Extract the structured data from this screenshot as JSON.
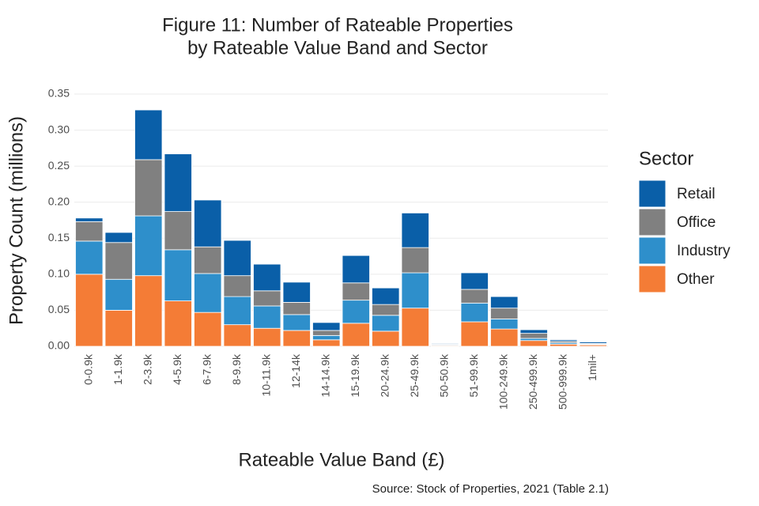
{
  "chart_data": {
    "type": "stacked-bar",
    "title": [
      "Figure 11: Number of Rateable Properties",
      "by Rateable Value Band and Sector"
    ],
    "x_label": "Rateable Value Band (£)",
    "y_label": "Property Count (millions)",
    "caption": "Source: Stock of Properties, 2021 (Table 2.1)",
    "legend_title": "Sector",
    "legend_position": "right",
    "grid": true,
    "categories": [
      "0-0.9k",
      "1-1.9k",
      "2-3.9k",
      "4-5.9k",
      "6-7.9k",
      "8-9.9k",
      "10-11.9k",
      "12-14k",
      "14-14.9k",
      "15-19.9k",
      "20-24.9k",
      "25-49.9k",
      "50-50.9k",
      "51-99.9k",
      "100-249.9k",
      "250-499.9k",
      "500-999.9k",
      "1mil+"
    ],
    "series": [
      {
        "name": "Retail",
        "color": "#0a5fa8",
        "values": [
          0.005,
          0.014,
          0.069,
          0.08,
          0.065,
          0.049,
          0.037,
          0.028,
          0.011,
          0.038,
          0.023,
          0.048,
          0.001,
          0.023,
          0.016,
          0.005,
          0.002,
          0.002
        ]
      },
      {
        "name": "Office",
        "color": "#808080",
        "values": [
          0.027,
          0.051,
          0.078,
          0.053,
          0.037,
          0.029,
          0.021,
          0.017,
          0.007,
          0.024,
          0.015,
          0.035,
          0.001,
          0.019,
          0.015,
          0.007,
          0.002,
          0.001
        ]
      },
      {
        "name": "Industry",
        "color": "#2e8fcb",
        "values": [
          0.046,
          0.043,
          0.083,
          0.071,
          0.054,
          0.039,
          0.031,
          0.022,
          0.006,
          0.032,
          0.022,
          0.049,
          0.001,
          0.026,
          0.014,
          0.003,
          0.002,
          0.001
        ]
      },
      {
        "name": "Other",
        "color": "#f47c36",
        "values": [
          0.1,
          0.05,
          0.098,
          0.063,
          0.047,
          0.03,
          0.025,
          0.022,
          0.009,
          0.032,
          0.021,
          0.053,
          0.001,
          0.034,
          0.024,
          0.008,
          0.003,
          0.002
        ]
      }
    ],
    "ylim": [
      0,
      0.35
    ],
    "yticks": [
      {
        "value": 0,
        "label": "0.00"
      },
      {
        "value": 0.05,
        "label": "0.05"
      },
      {
        "value": 0.1,
        "label": "0.10"
      },
      {
        "value": 0.15,
        "label": "0.15"
      },
      {
        "value": 0.2,
        "label": "0.20"
      },
      {
        "value": 0.25,
        "label": "0.25"
      },
      {
        "value": 0.3,
        "label": "0.30"
      },
      {
        "value": 0.35,
        "label": "0.35"
      }
    ]
  }
}
